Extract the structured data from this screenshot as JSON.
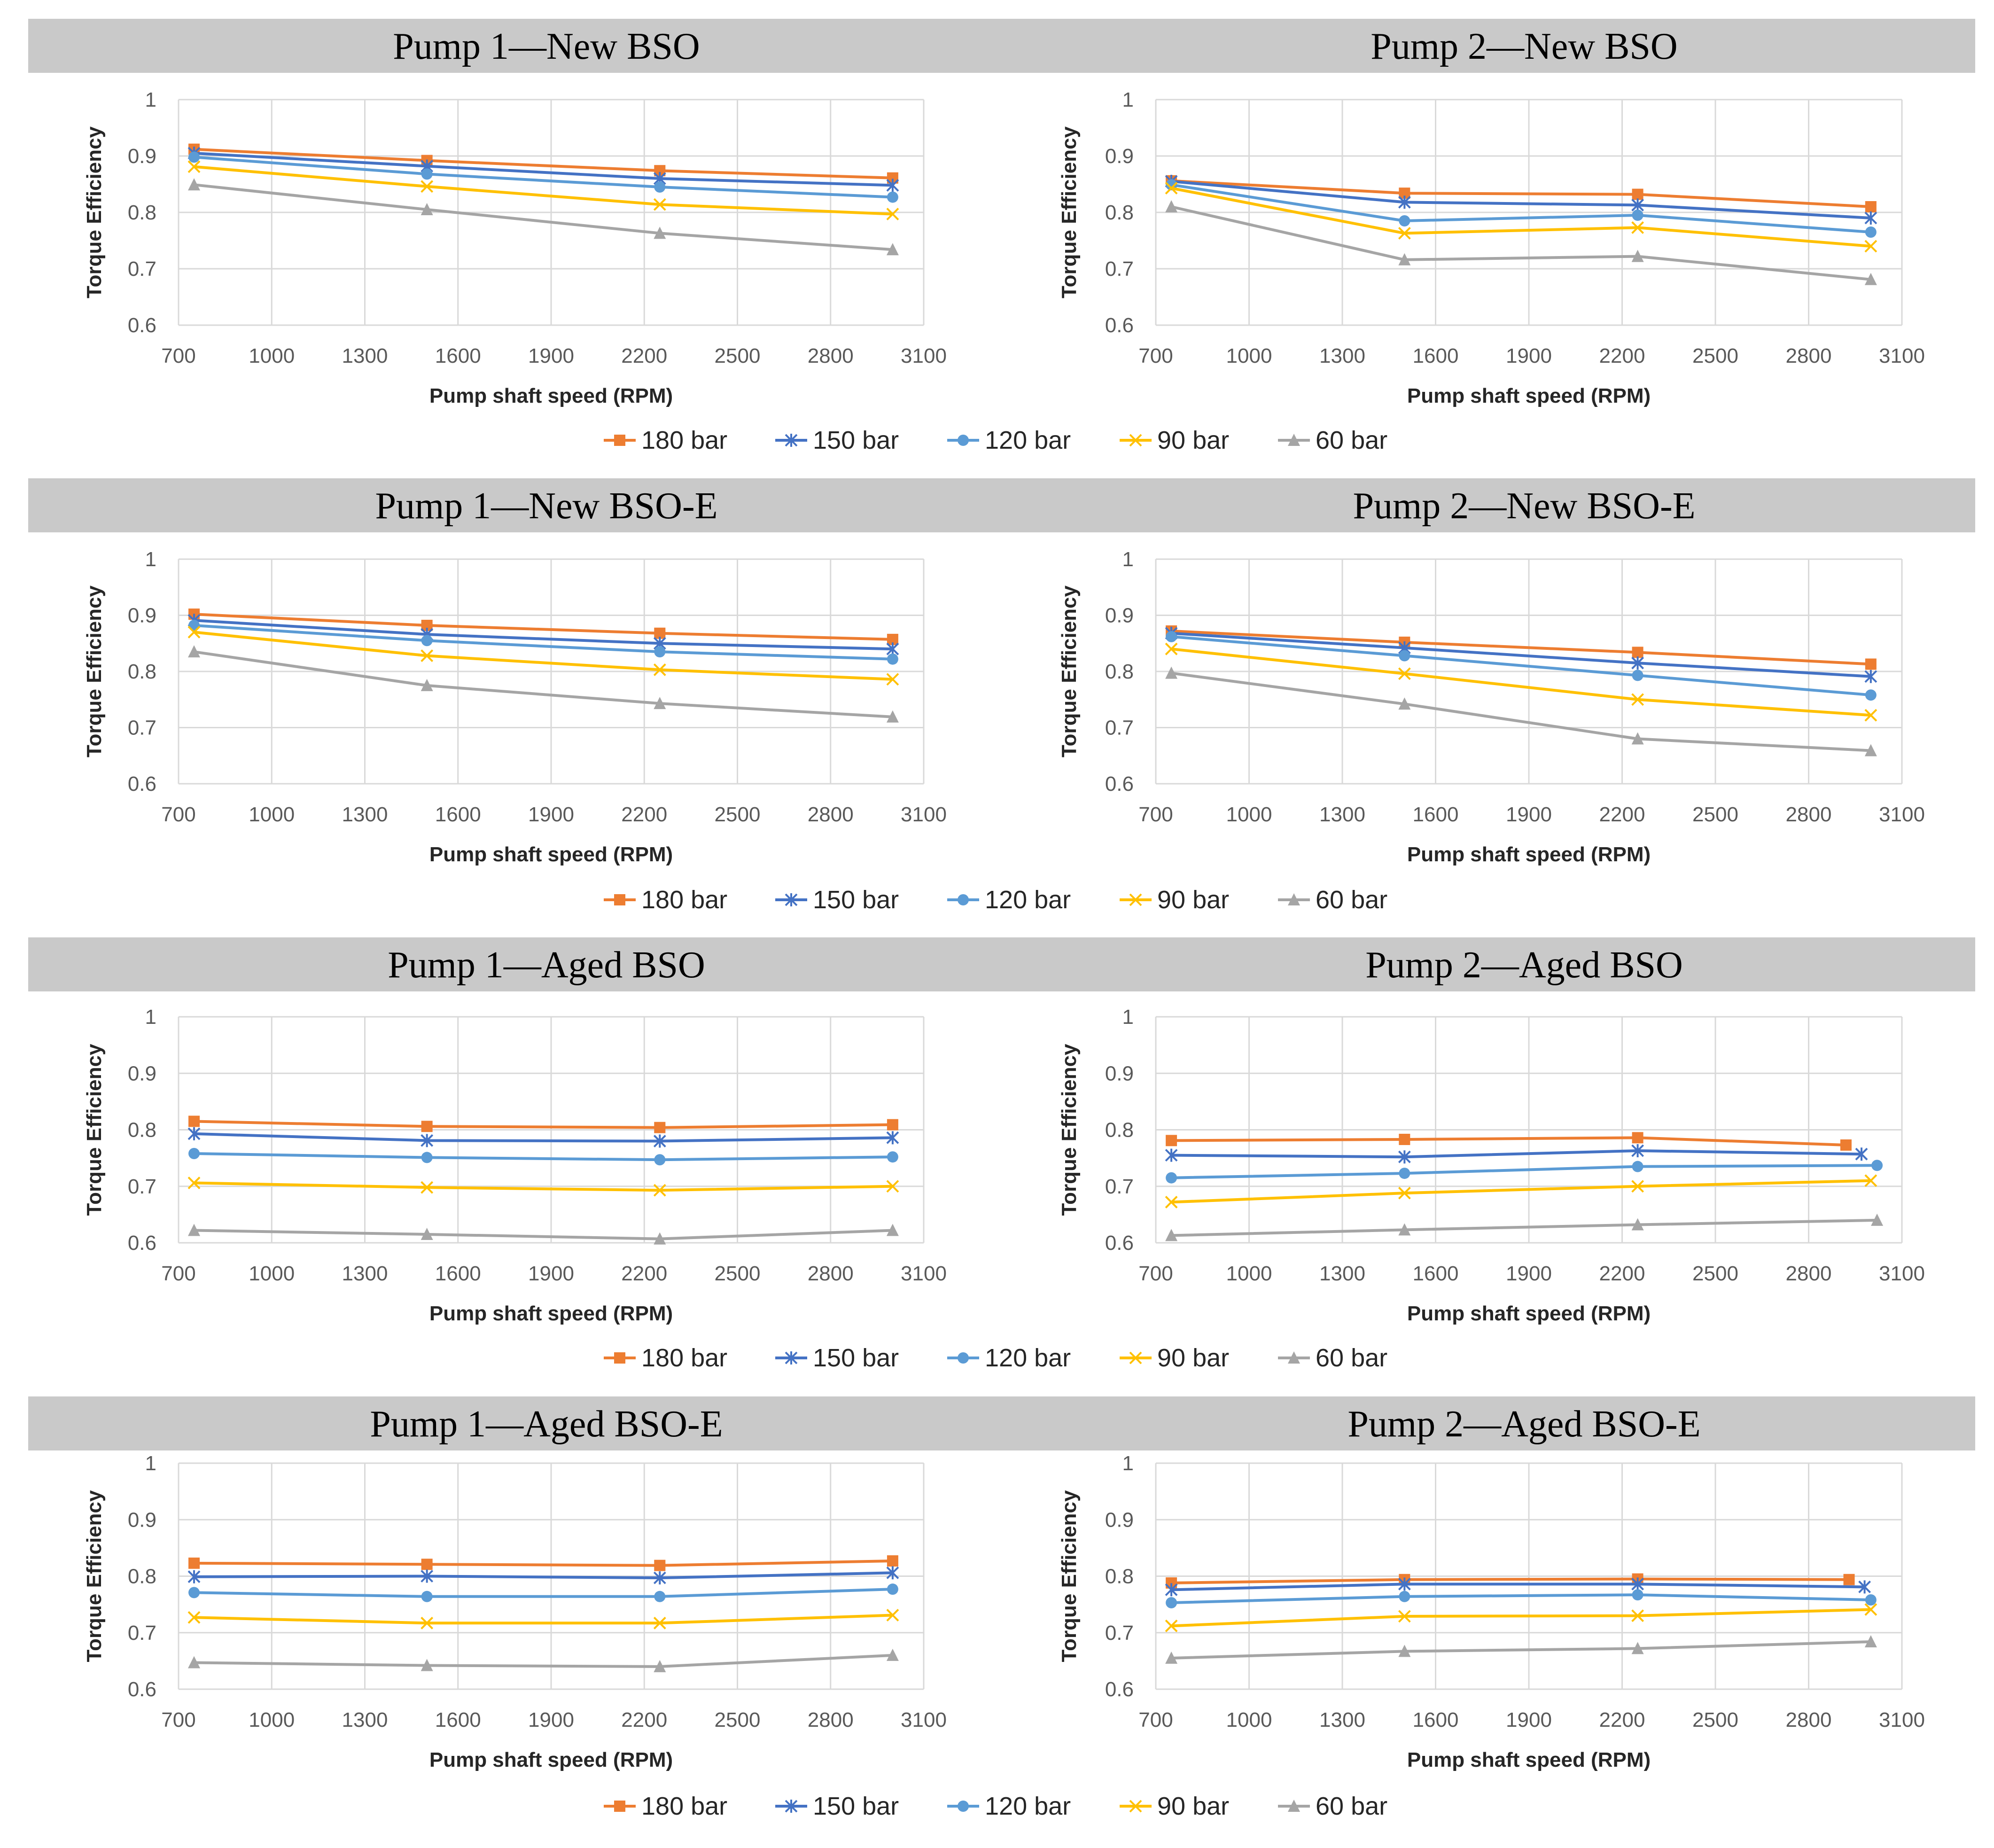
{
  "figure": {
    "series_styles": [
      {
        "name": "180 bar",
        "color": "#ED7D31",
        "marker": "square"
      },
      {
        "name": "150 bar",
        "color": "#4472C4",
        "marker": "star"
      },
      {
        "name": "120 bar",
        "color": "#5B9BD5",
        "marker": "circle"
      },
      {
        "name": "90 bar",
        "color": "#FFC000",
        "marker": "x"
      },
      {
        "name": "60 bar",
        "color": "#A5A5A5",
        "marker": "triangle"
      }
    ],
    "title_bar_color": "#C9C9C9",
    "gridline_color": "#D9D9D9"
  },
  "chart_data": [
    {
      "type": "line",
      "title": "Pump 1—New BSO",
      "xlabel": "Pump shaft speed (RPM)",
      "ylabel": "Torque Efficiency",
      "xlim": [
        700,
        3100
      ],
      "ylim": [
        0.6,
        1
      ],
      "xticks": [
        "700",
        "1000",
        "1300",
        "1600",
        "1900",
        "2200",
        "2500",
        "2800",
        "3100"
      ],
      "yticks": [
        "0.6",
        "0.7",
        "0.8",
        "0.9",
        "1"
      ],
      "legend": [
        "180 bar",
        "150 bar",
        "120 bar",
        "90 bar",
        "60 bar"
      ],
      "series": [
        {
          "name": "180 bar",
          "x": [
            750,
            1500,
            2250,
            3000
          ],
          "values": [
            0.912,
            0.892,
            0.874,
            0.861
          ]
        },
        {
          "name": "150 bar",
          "x": [
            750,
            1500,
            2250,
            3000
          ],
          "values": [
            0.905,
            0.882,
            0.86,
            0.848
          ]
        },
        {
          "name": "120 bar",
          "x": [
            750,
            1500,
            2250,
            3000
          ],
          "values": [
            0.898,
            0.868,
            0.845,
            0.827
          ]
        },
        {
          "name": "90 bar",
          "x": [
            750,
            1500,
            2250,
            3000
          ],
          "values": [
            0.881,
            0.846,
            0.814,
            0.797
          ]
        },
        {
          "name": "60 bar",
          "x": [
            750,
            1500,
            2250,
            3000
          ],
          "values": [
            0.849,
            0.805,
            0.763,
            0.734
          ]
        }
      ]
    },
    {
      "type": "line",
      "title": "Pump 2—New BSO",
      "xlabel": "Pump shaft speed (RPM)",
      "ylabel": "Torque Efficiency",
      "xlim": [
        700,
        3100
      ],
      "ylim": [
        0.6,
        1
      ],
      "xticks": [
        "700",
        "1000",
        "1300",
        "1600",
        "1900",
        "2200",
        "2500",
        "2800",
        "3100"
      ],
      "yticks": [
        "0.6",
        "0.7",
        "0.8",
        "0.9",
        "1"
      ],
      "legend": [
        "180 bar",
        "150 bar",
        "120 bar",
        "90 bar",
        "60 bar"
      ],
      "series": [
        {
          "name": "180 bar",
          "x": [
            750,
            1500,
            2250,
            3000
          ],
          "values": [
            0.856,
            0.834,
            0.832,
            0.81
          ]
        },
        {
          "name": "150 bar",
          "x": [
            750,
            1500,
            2250,
            3000
          ],
          "values": [
            0.855,
            0.818,
            0.813,
            0.79
          ]
        },
        {
          "name": "120 bar",
          "x": [
            750,
            1500,
            2250,
            3000
          ],
          "values": [
            0.849,
            0.785,
            0.795,
            0.765
          ]
        },
        {
          "name": "90 bar",
          "x": [
            750,
            1500,
            2250,
            3000
          ],
          "values": [
            0.843,
            0.763,
            0.773,
            0.74
          ]
        },
        {
          "name": "60 bar",
          "x": [
            750,
            1500,
            2250,
            3000
          ],
          "values": [
            0.81,
            0.716,
            0.722,
            0.681
          ]
        }
      ]
    },
    {
      "type": "line",
      "title": "Pump 1—New BSO-E",
      "xlabel": "Pump shaft speed (RPM)",
      "ylabel": "Torque Efficiency",
      "xlim": [
        700,
        3100
      ],
      "ylim": [
        0.6,
        1
      ],
      "xticks": [
        "700",
        "1000",
        "1300",
        "1600",
        "1900",
        "2200",
        "2500",
        "2800",
        "3100"
      ],
      "yticks": [
        "0.6",
        "0.7",
        "0.8",
        "0.9",
        "1"
      ],
      "legend": [
        "180 bar",
        "150 bar",
        "120 bar",
        "90 bar",
        "60 bar"
      ],
      "series": [
        {
          "name": "180 bar",
          "x": [
            750,
            1500,
            2250,
            3000
          ],
          "values": [
            0.902,
            0.882,
            0.868,
            0.857
          ]
        },
        {
          "name": "150 bar",
          "x": [
            750,
            1500,
            2250,
            3000
          ],
          "values": [
            0.891,
            0.866,
            0.85,
            0.84
          ]
        },
        {
          "name": "120 bar",
          "x": [
            750,
            1500,
            2250,
            3000
          ],
          "values": [
            0.882,
            0.855,
            0.835,
            0.822
          ]
        },
        {
          "name": "90 bar",
          "x": [
            750,
            1500,
            2250,
            3000
          ],
          "values": [
            0.87,
            0.828,
            0.803,
            0.786
          ]
        },
        {
          "name": "60 bar",
          "x": [
            750,
            1500,
            2250,
            3000
          ],
          "values": [
            0.835,
            0.775,
            0.743,
            0.719
          ]
        }
      ]
    },
    {
      "type": "line",
      "title": "Pump 2—New BSO-E",
      "xlabel": "Pump shaft speed (RPM)",
      "ylabel": "Torque Efficiency",
      "xlim": [
        700,
        3100
      ],
      "ylim": [
        0.6,
        1
      ],
      "xticks": [
        "700",
        "1000",
        "1300",
        "1600",
        "1900",
        "2200",
        "2500",
        "2800",
        "3100"
      ],
      "yticks": [
        "0.6",
        "0.7",
        "0.8",
        "0.9",
        "1"
      ],
      "legend": [
        "180 bar",
        "150 bar",
        "120 bar",
        "90 bar",
        "60 bar"
      ],
      "series": [
        {
          "name": "180 bar",
          "x": [
            750,
            1500,
            2250,
            3000
          ],
          "values": [
            0.872,
            0.852,
            0.834,
            0.813
          ]
        },
        {
          "name": "150 bar",
          "x": [
            750,
            1500,
            2250,
            3000
          ],
          "values": [
            0.868,
            0.842,
            0.815,
            0.791
          ]
        },
        {
          "name": "120 bar",
          "x": [
            750,
            1500,
            2250,
            3000
          ],
          "values": [
            0.862,
            0.828,
            0.793,
            0.758
          ]
        },
        {
          "name": "90 bar",
          "x": [
            750,
            1500,
            2250,
            3000
          ],
          "values": [
            0.84,
            0.796,
            0.75,
            0.722
          ]
        },
        {
          "name": "60 bar",
          "x": [
            750,
            1500,
            2250,
            3000
          ],
          "values": [
            0.797,
            0.742,
            0.68,
            0.659
          ]
        }
      ]
    },
    {
      "type": "line",
      "title": "Pump 1—Aged BSO",
      "xlabel": "Pump shaft speed (RPM)",
      "ylabel": "Torque Efficiency",
      "xlim": [
        700,
        3100
      ],
      "ylim": [
        0.6,
        1
      ],
      "xticks": [
        "700",
        "1000",
        "1300",
        "1600",
        "1900",
        "2200",
        "2500",
        "2800",
        "3100"
      ],
      "yticks": [
        "0.6",
        "0.7",
        "0.8",
        "0.9",
        "1"
      ],
      "legend": [
        "180 bar",
        "150 bar",
        "120 bar",
        "90 bar",
        "60 bar"
      ],
      "series": [
        {
          "name": "180 bar",
          "x": [
            750,
            1500,
            2250,
            3000
          ],
          "values": [
            0.815,
            0.806,
            0.804,
            0.809
          ]
        },
        {
          "name": "150 bar",
          "x": [
            750,
            1500,
            2250,
            3000
          ],
          "values": [
            0.793,
            0.781,
            0.78,
            0.786
          ]
        },
        {
          "name": "120 bar",
          "x": [
            750,
            1500,
            2250,
            3000
          ],
          "values": [
            0.758,
            0.751,
            0.747,
            0.752
          ]
        },
        {
          "name": "90 bar",
          "x": [
            750,
            1500,
            2250,
            3000
          ],
          "values": [
            0.706,
            0.698,
            0.693,
            0.7
          ]
        },
        {
          "name": "60 bar",
          "x": [
            750,
            1500,
            2250,
            3000
          ],
          "values": [
            0.622,
            0.615,
            0.607,
            0.622
          ]
        }
      ]
    },
    {
      "type": "line",
      "title": "Pump 2—Aged BSO",
      "xlabel": "Pump shaft speed (RPM)",
      "ylabel": "Torque Efficiency",
      "xlim": [
        700,
        3100
      ],
      "ylim": [
        0.6,
        1
      ],
      "xticks": [
        "700",
        "1000",
        "1300",
        "1600",
        "1900",
        "2200",
        "2500",
        "2800",
        "3100"
      ],
      "yticks": [
        "0.6",
        "0.7",
        "0.8",
        "0.9",
        "1"
      ],
      "legend": [
        "180 bar",
        "150 bar",
        "120 bar",
        "90 bar",
        "60 bar"
      ],
      "series": [
        {
          "name": "180 bar",
          "x": [
            750,
            1500,
            2250,
            2920
          ],
          "values": [
            0.781,
            0.783,
            0.786,
            0.773
          ]
        },
        {
          "name": "150 bar",
          "x": [
            750,
            1500,
            2250,
            2970
          ],
          "values": [
            0.755,
            0.752,
            0.763,
            0.757
          ]
        },
        {
          "name": "120 bar",
          "x": [
            750,
            1500,
            2250,
            3020
          ],
          "values": [
            0.715,
            0.723,
            0.735,
            0.737
          ]
        },
        {
          "name": "90 bar",
          "x": [
            750,
            1500,
            2250,
            3000
          ],
          "values": [
            0.672,
            0.688,
            0.7,
            0.71
          ]
        },
        {
          "name": "60 bar",
          "x": [
            750,
            1500,
            2250,
            3020
          ],
          "values": [
            0.613,
            0.623,
            0.632,
            0.64
          ]
        }
      ]
    },
    {
      "type": "line",
      "title": "Pump 1—Aged BSO-E",
      "xlabel": "Pump shaft speed (RPM)",
      "ylabel": "Torque Efficiency",
      "xlim": [
        700,
        3100
      ],
      "ylim": [
        0.6,
        1
      ],
      "xticks": [
        "700",
        "1000",
        "1300",
        "1600",
        "1900",
        "2200",
        "2500",
        "2800",
        "3100"
      ],
      "yticks": [
        "0.6",
        "0.7",
        "0.8",
        "0.9",
        "1"
      ],
      "legend": [
        "180 bar",
        "150 bar",
        "120 bar",
        "90 bar",
        "60 bar"
      ],
      "series": [
        {
          "name": "180 bar",
          "x": [
            750,
            1500,
            2250,
            3000
          ],
          "values": [
            0.823,
            0.821,
            0.819,
            0.827
          ]
        },
        {
          "name": "150 bar",
          "x": [
            750,
            1500,
            2250,
            3000
          ],
          "values": [
            0.799,
            0.8,
            0.797,
            0.806
          ]
        },
        {
          "name": "120 bar",
          "x": [
            750,
            1500,
            2250,
            3000
          ],
          "values": [
            0.771,
            0.764,
            0.764,
            0.777
          ]
        },
        {
          "name": "90 bar",
          "x": [
            750,
            1500,
            2250,
            3000
          ],
          "values": [
            0.727,
            0.717,
            0.717,
            0.731
          ]
        },
        {
          "name": "60 bar",
          "x": [
            750,
            1500,
            2250,
            3000
          ],
          "values": [
            0.647,
            0.642,
            0.64,
            0.66
          ]
        }
      ]
    },
    {
      "type": "line",
      "title": "Pump 2—Aged BSO-E",
      "xlabel": "Pump shaft speed (RPM)",
      "ylabel": "Torque Efficiency",
      "xlim": [
        700,
        3100
      ],
      "ylim": [
        0.6,
        1
      ],
      "xticks": [
        "700",
        "1000",
        "1300",
        "1600",
        "1900",
        "2200",
        "2500",
        "2800",
        "3100"
      ],
      "yticks": [
        "0.6",
        "0.7",
        "0.8",
        "0.9",
        "1"
      ],
      "legend": [
        "180 bar",
        "150 bar",
        "120 bar",
        "90 bar",
        "60 bar"
      ],
      "series": [
        {
          "name": "180 bar",
          "x": [
            750,
            1500,
            2250,
            2930
          ],
          "values": [
            0.788,
            0.794,
            0.795,
            0.794
          ]
        },
        {
          "name": "150 bar",
          "x": [
            750,
            1500,
            2250,
            2980
          ],
          "values": [
            0.776,
            0.786,
            0.786,
            0.781
          ]
        },
        {
          "name": "120 bar",
          "x": [
            750,
            1500,
            2250,
            3000
          ],
          "values": [
            0.753,
            0.764,
            0.767,
            0.758
          ]
        },
        {
          "name": "90 bar",
          "x": [
            750,
            1500,
            2250,
            3000
          ],
          "values": [
            0.712,
            0.729,
            0.73,
            0.741
          ]
        },
        {
          "name": "60 bar",
          "x": [
            750,
            1500,
            2250,
            3000
          ],
          "values": [
            0.655,
            0.667,
            0.672,
            0.684
          ]
        }
      ]
    }
  ]
}
